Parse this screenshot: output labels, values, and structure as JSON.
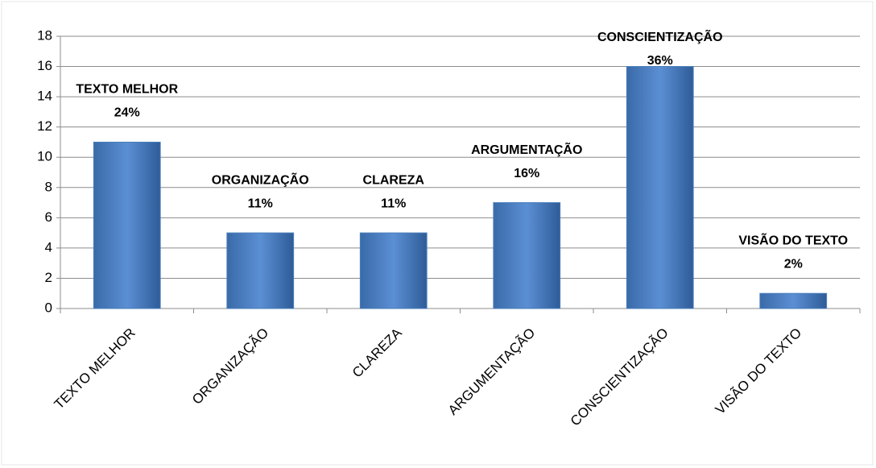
{
  "chart_data": {
    "type": "bar",
    "categories": [
      "TEXTO MELHOR",
      "ORGANIZAÇÃO",
      "CLAREZA",
      "ARGUMENTAÇÃO",
      "CONSCIENTIZAÇÃO",
      "VISÃO DO TEXTO"
    ],
    "values": [
      11,
      5,
      5,
      7,
      16,
      1
    ],
    "annotations": [
      {
        "title": "TEXTO MELHOR",
        "text": "24%"
      },
      {
        "title": "ORGANIZAÇÃO",
        "text": "11%"
      },
      {
        "title": "CLAREZA",
        "text": "11%"
      },
      {
        "title": "ARGUMENTAÇÃO",
        "text": "16%"
      },
      {
        "title": "CONSCIENTIZAÇÃO",
        "text": "36%"
      },
      {
        "title": "VISÃO DO TEXTO",
        "text": "2%"
      }
    ],
    "color": "#4a7ebb",
    "ylim": [
      0,
      18
    ],
    "yticks": [
      0,
      2,
      4,
      6,
      8,
      10,
      12,
      14,
      16,
      18
    ],
    "grid": true
  }
}
